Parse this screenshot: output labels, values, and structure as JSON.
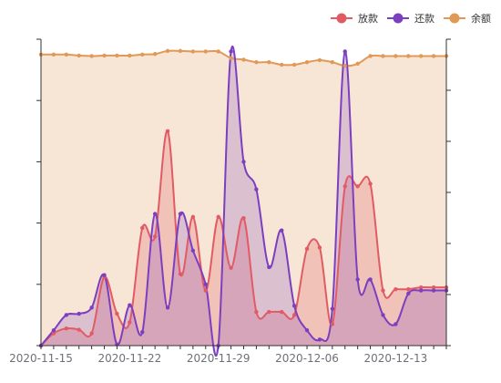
{
  "chart_data": {
    "type": "line",
    "smooth": true,
    "area": true,
    "legend_position": "top-right",
    "grid": false,
    "x": [
      "2020-11-15",
      "2020-11-16",
      "2020-11-17",
      "2020-11-18",
      "2020-11-19",
      "2020-11-20",
      "2020-11-21",
      "2020-11-22",
      "2020-11-23",
      "2020-11-24",
      "2020-11-25",
      "2020-11-26",
      "2020-11-27",
      "2020-11-28",
      "2020-11-29",
      "2020-11-30",
      "2020-12-01",
      "2020-12-02",
      "2020-12-03",
      "2020-12-04",
      "2020-12-05",
      "2020-12-06",
      "2020-12-07",
      "2020-12-08",
      "2020-12-09",
      "2020-12-10",
      "2020-12-11",
      "2020-12-12",
      "2020-12-13",
      "2020-12-14",
      "2020-12-15",
      "2020-12-16",
      "2020-12-17"
    ],
    "x_tick_labels": [
      "2020-11-15",
      "2020-11-22",
      "2020-11-29",
      "2020-12-06",
      "2020-12-13"
    ],
    "left_axis": {
      "min": 0,
      "max": 500,
      "ticks": [
        0,
        100,
        200,
        300,
        400,
        500
      ]
    },
    "right_axis": {
      "min": 0,
      "max": 600,
      "ticks": [
        0,
        100,
        200,
        300,
        400,
        500,
        600
      ]
    },
    "series": [
      {
        "name": "放款",
        "color": "#e15b64",
        "axis": "left",
        "values": [
          0,
          20,
          28,
          26,
          20,
          112,
          52,
          38,
          192,
          178,
          350,
          117,
          210,
          90,
          210,
          127,
          208,
          55,
          55,
          55,
          50,
          158,
          160,
          35,
          260,
          260,
          264,
          90,
          92,
          92,
          95,
          95,
          95
        ]
      },
      {
        "name": "还款",
        "color": "#7b3fbf",
        "axis": "left",
        "values": [
          0,
          25,
          50,
          52,
          62,
          115,
          2,
          66,
          22,
          215,
          62,
          215,
          155,
          100,
          0,
          480,
          300,
          255,
          128,
          188,
          65,
          25,
          10,
          60,
          480,
          108,
          108,
          50,
          35,
          85,
          90,
          90,
          90
        ]
      },
      {
        "name": "余额",
        "color": "#e09956",
        "axis": "right",
        "values": [
          570,
          570,
          570,
          568,
          567,
          568,
          568,
          568,
          570,
          571,
          577,
          577,
          576,
          576,
          576,
          563,
          560,
          555,
          555,
          550,
          550,
          555,
          559,
          555,
          548,
          552,
          567,
          567,
          567,
          567,
          567,
          567,
          567
        ]
      }
    ]
  }
}
